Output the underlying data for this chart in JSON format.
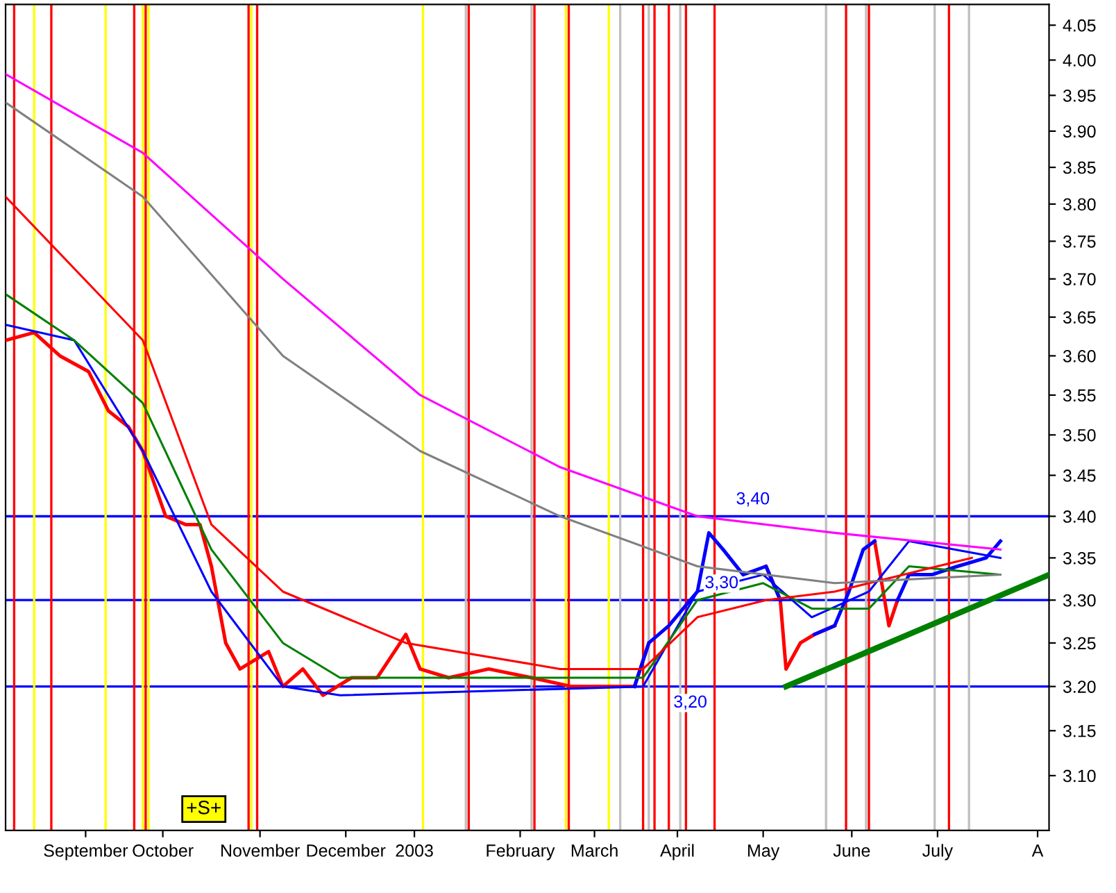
{
  "chart_data": {
    "type": "line",
    "log": "y",
    "grid": false,
    "legend": false,
    "marker": "none",
    "line_style": "solid",
    "x": [
      "2002-08-18",
      "2002-08-28",
      "2002-09-06",
      "2002-09-16",
      "2002-09-23",
      "2002-09-30",
      "2002-10-05",
      "2002-10-13",
      "2002-10-20",
      "2002-10-25",
      "2002-10-29",
      "2002-11-03",
      "2002-11-08",
      "2002-11-13",
      "2002-11-18",
      "2002-11-23",
      "2002-11-30",
      "2002-12-07",
      "2002-12-17",
      "2002-12-26",
      "2003-01-05",
      "2003-01-10",
      "2003-01-20",
      "2003-02-03",
      "2003-02-18",
      "2003-03-04",
      "2003-03-19",
      "2003-03-26",
      "2003-03-31",
      "2003-04-07",
      "2003-04-17",
      "2003-04-21",
      "2003-04-26",
      "2003-05-03",
      "2003-05-11",
      "2003-05-16",
      "2003-05-18",
      "2003-05-23",
      "2003-05-28",
      "2003-06-04",
      "2003-06-09",
      "2003-06-14",
      "2003-06-18",
      "2003-06-23",
      "2003-06-26",
      "2003-06-30",
      "2003-07-08",
      "2003-07-17",
      "2003-07-27",
      "2003-08-01"
    ],
    "series": [
      {
        "color": "#ff0000",
        "values": [
          3.62,
          3.63,
          3.6,
          3.58,
          3.53,
          3.51,
          3.48,
          3.4,
          3.39,
          3.39,
          3.34,
          3.25,
          3.22,
          3.23,
          3.24,
          3.2,
          3.22,
          3.19,
          3.21,
          3.21,
          3.26,
          3.22,
          3.21,
          3.22,
          3.21,
          3.2,
          3.2,
          3.2,
          3.25,
          null,
          null,
          null,
          null,
          null,
          3.34,
          3.3,
          3.22,
          3.25,
          3.26,
          3.27,
          null,
          null,
          3.37,
          3.27,
          3.3,
          null,
          null,
          null,
          null,
          null
        ]
      },
      {
        "color": "#0000ff",
        "values": [
          null,
          null,
          null,
          null,
          null,
          null,
          null,
          null,
          null,
          null,
          null,
          null,
          null,
          null,
          null,
          null,
          null,
          null,
          null,
          null,
          null,
          null,
          null,
          null,
          null,
          null,
          null,
          3.2,
          3.25,
          3.27,
          3.31,
          3.38,
          3.36,
          3.33,
          3.34,
          3.3,
          null,
          null,
          3.26,
          3.27,
          3.31,
          3.36,
          3.37,
          null,
          3.3,
          3.33,
          3.33,
          3.34,
          3.35,
          3.37
        ]
      },
      {
        "color": "#0000ff",
        "x": [
          "2002-08-18",
          "2002-09-11",
          "2002-10-05",
          "2002-10-29",
          "2002-11-23",
          "2002-12-13",
          "2003-03-29",
          "2003-04-17",
          "2003-05-10",
          "2003-05-27",
          "2003-06-16",
          "2003-06-30",
          "2003-08-01"
        ],
        "values": [
          3.64,
          3.62,
          3.48,
          3.31,
          3.2,
          3.19,
          3.2,
          3.31,
          3.33,
          3.28,
          3.31,
          3.37,
          3.35
        ]
      },
      {
        "color": "#008000",
        "x": [
          "2002-08-18",
          "2002-09-11",
          "2002-10-05",
          "2002-10-29",
          "2002-11-23",
          "2002-12-13",
          "2003-03-29",
          "2003-04-17",
          "2003-05-10",
          "2003-05-27",
          "2003-06-16",
          "2003-06-30",
          "2003-08-01"
        ],
        "values": [
          3.68,
          3.62,
          3.54,
          3.36,
          3.25,
          3.21,
          3.21,
          3.3,
          3.32,
          3.29,
          3.29,
          3.34,
          3.33
        ]
      },
      {
        "color": "#ff0000",
        "x": [
          "2002-08-18",
          "2002-10-05",
          "2002-10-29",
          "2002-11-23",
          "2003-01-05",
          "2003-02-28",
          "2003-03-29",
          "2003-04-17",
          "2003-05-11",
          "2003-06-04",
          "2003-07-22"
        ],
        "values": [
          3.81,
          3.62,
          3.39,
          3.31,
          3.25,
          3.22,
          3.22,
          3.28,
          3.3,
          3.31,
          3.35
        ]
      },
      {
        "color": "#808080",
        "x": [
          "2002-08-18",
          "2002-10-05",
          "2002-11-23",
          "2003-01-10",
          "2003-02-28",
          "2003-04-17",
          "2003-06-04",
          "2003-08-01"
        ],
        "values": [
          3.94,
          3.81,
          3.6,
          3.48,
          3.4,
          3.34,
          3.32,
          3.33
        ]
      },
      {
        "color": "#ff00ff",
        "x": [
          "2002-08-18",
          "2002-10-05",
          "2002-11-23",
          "2003-01-10",
          "2003-02-28",
          "2003-04-17",
          "2003-06-04",
          "2003-08-01"
        ],
        "values": [
          3.98,
          3.87,
          3.7,
          3.55,
          3.46,
          3.4,
          3.38,
          3.36
        ]
      },
      {
        "color": "#008000",
        "x": [
          "2003-05-18",
          "2003-08-18"
        ],
        "values": [
          3.2,
          3.33
        ]
      }
    ],
    "ref_lines": [
      {
        "axis": "y",
        "value": 3.4,
        "label": "3,40",
        "color": "#0000ff"
      },
      {
        "axis": "y",
        "value": 3.3,
        "label": "3,30",
        "color": "#0000ff"
      },
      {
        "axis": "y",
        "value": 3.2,
        "label": "3,20",
        "color": "#0000ff"
      },
      {
        "axis": "x",
        "value": "2002-08-21",
        "color": "#ff0000"
      },
      {
        "axis": "x",
        "value": "2002-09-03",
        "color": "#ff0000"
      },
      {
        "axis": "x",
        "value": "2002-10-02",
        "color": "#ff0000"
      },
      {
        "axis": "x",
        "value": "2002-10-06",
        "color": "#ff0000"
      },
      {
        "axis": "x",
        "value": "2002-11-11",
        "color": "#ff0000"
      },
      {
        "axis": "x",
        "value": "2002-11-14",
        "color": "#ff0000"
      },
      {
        "axis": "x",
        "value": "2003-01-27",
        "color": "#ff0000"
      },
      {
        "axis": "x",
        "value": "2003-02-19",
        "color": "#ff0000"
      },
      {
        "axis": "x",
        "value": "2003-03-03",
        "color": "#ff0000"
      },
      {
        "axis": "x",
        "value": "2003-03-29",
        "color": "#ff0000"
      },
      {
        "axis": "x",
        "value": "2003-04-02",
        "color": "#ff0000"
      },
      {
        "axis": "x",
        "value": "2003-04-07",
        "color": "#ff0000"
      },
      {
        "axis": "x",
        "value": "2003-04-13",
        "color": "#ff0000"
      },
      {
        "axis": "x",
        "value": "2003-04-23",
        "color": "#ff0000"
      },
      {
        "axis": "x",
        "value": "2003-06-08",
        "color": "#ff0000"
      },
      {
        "axis": "x",
        "value": "2003-06-16",
        "color": "#ff0000"
      },
      {
        "axis": "x",
        "value": "2003-07-14",
        "color": "#ff0000"
      },
      {
        "axis": "x",
        "value": "2002-08-28",
        "color": "#ffff00"
      },
      {
        "axis": "x",
        "value": "2002-09-22",
        "color": "#ffff00"
      },
      {
        "axis": "x",
        "value": "2002-10-05",
        "color": "#ffff00"
      },
      {
        "axis": "x",
        "value": "2002-10-07",
        "color": "#ffff00"
      },
      {
        "axis": "x",
        "value": "2002-11-12",
        "color": "#ffff00"
      },
      {
        "axis": "x",
        "value": "2003-01-11",
        "color": "#ffff00"
      },
      {
        "axis": "x",
        "value": "2003-03-02",
        "color": "#ffff00"
      },
      {
        "axis": "x",
        "value": "2003-03-17",
        "color": "#ffff00"
      },
      {
        "axis": "x",
        "value": "2003-01-26",
        "color": "#c0c0c0"
      },
      {
        "axis": "x",
        "value": "2003-02-18",
        "color": "#c0c0c0"
      },
      {
        "axis": "x",
        "value": "2003-03-21",
        "color": "#c0c0c0"
      },
      {
        "axis": "x",
        "value": "2003-03-31",
        "color": "#c0c0c0"
      },
      {
        "axis": "x",
        "value": "2003-04-11",
        "color": "#c0c0c0"
      },
      {
        "axis": "x",
        "value": "2003-06-01",
        "color": "#c0c0c0"
      },
      {
        "axis": "x",
        "value": "2003-06-15",
        "color": "#c0c0c0"
      },
      {
        "axis": "x",
        "value": "2003-07-09",
        "color": "#c0c0c0"
      },
      {
        "axis": "x",
        "value": "2003-07-21",
        "color": "#c0c0c0"
      }
    ],
    "annotations": [
      "+S+"
    ],
    "xlim": [
      "2002-08-18",
      "2003-08-18"
    ],
    "xticks": [
      {
        "value": "2002-09-15",
        "label": "September"
      },
      {
        "value": "2002-10-12",
        "label": "October"
      },
      {
        "value": "2002-11-15",
        "label": "November"
      },
      {
        "value": "2002-12-15",
        "label": "December"
      },
      {
        "value": "2003-01-08",
        "label": "2003"
      },
      {
        "value": "2003-02-14",
        "label": "February"
      },
      {
        "value": "2003-03-12",
        "label": "March"
      },
      {
        "value": "2003-04-10",
        "label": "April"
      },
      {
        "value": "2003-05-10",
        "label": "May"
      },
      {
        "value": "2003-06-10",
        "label": "June"
      },
      {
        "value": "2003-07-10",
        "label": "July"
      },
      {
        "value": "2003-08-14",
        "label": "A"
      }
    ],
    "ylim": [
      3.04,
      4.08
    ],
    "yticks": [
      {
        "value": 3.1,
        "label": "3.10"
      },
      {
        "value": 3.15,
        "label": "3.15"
      },
      {
        "value": 3.2,
        "label": "3.20"
      },
      {
        "value": 3.25,
        "label": "3.25"
      },
      {
        "value": 3.3,
        "label": "3.30"
      },
      {
        "value": 3.35,
        "label": "3.35"
      },
      {
        "value": 3.4,
        "label": "3.40"
      },
      {
        "value": 3.45,
        "label": "3.45"
      },
      {
        "value": 3.5,
        "label": "3.50"
      },
      {
        "value": 3.55,
        "label": "3.55"
      },
      {
        "value": 3.6,
        "label": "3.60"
      },
      {
        "value": 3.65,
        "label": "3.65"
      },
      {
        "value": 3.7,
        "label": "3.70"
      },
      {
        "value": 3.75,
        "label": "3.75"
      },
      {
        "value": 3.8,
        "label": "3.80"
      },
      {
        "value": 3.85,
        "label": "3.85"
      },
      {
        "value": 3.9,
        "label": "3.90"
      },
      {
        "value": 3.95,
        "label": "3.95"
      },
      {
        "value": 4.0,
        "label": "4.00"
      },
      {
        "value": 4.05,
        "label": "4.05"
      }
    ]
  }
}
